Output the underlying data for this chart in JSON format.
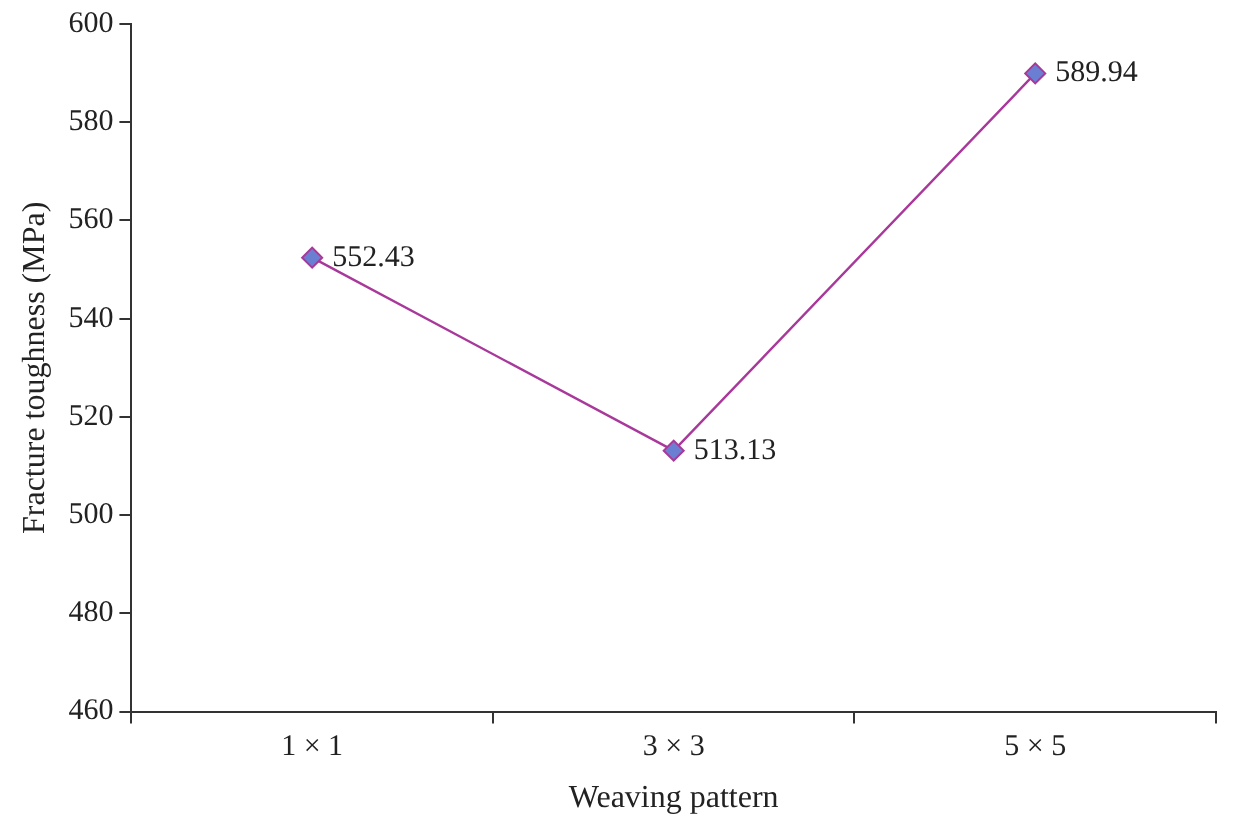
{
  "chart_data": {
    "type": "line",
    "xlabel": "Weaving pattern",
    "ylabel": "Fracture toughness (MPa)",
    "categories": [
      "1 × 1",
      "3 × 3",
      "5 × 5"
    ],
    "series": [
      {
        "color": "#a8389a",
        "values": [
          552.43,
          513.13,
          589.94
        ]
      }
    ],
    "ylim": [
      460,
      600
    ],
    "yticks": [
      460,
      480,
      500,
      520,
      540,
      560,
      580,
      600
    ],
    "grid": false,
    "legend": false,
    "marker": "diamond",
    "line_style": "solid",
    "data_labels": true
  }
}
